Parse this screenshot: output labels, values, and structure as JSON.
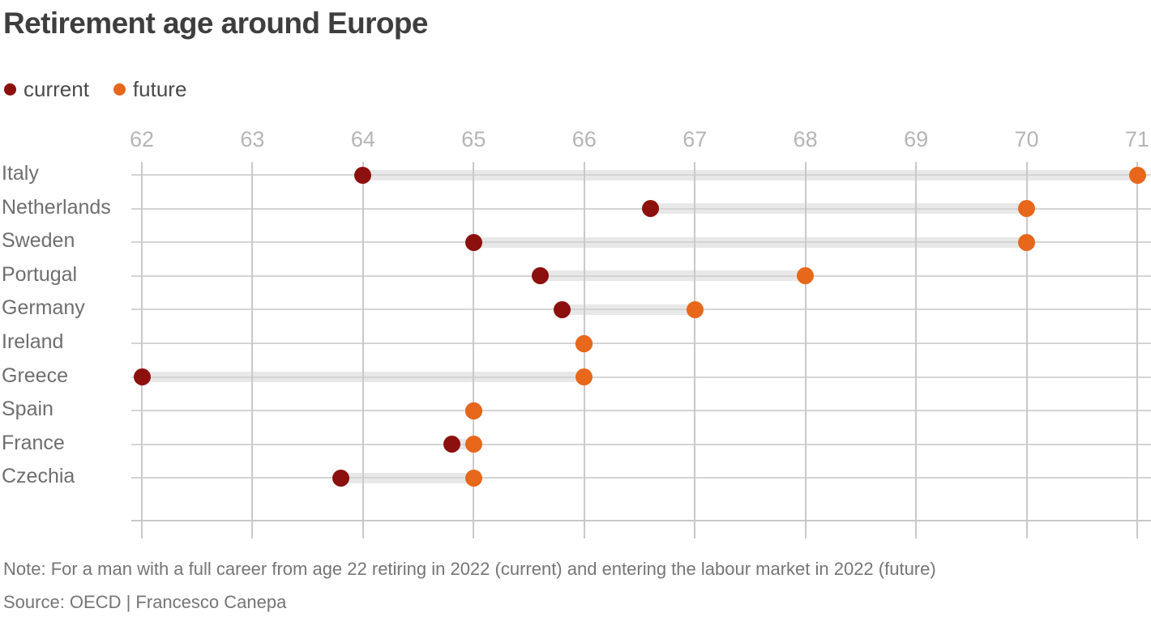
{
  "title": "Retirement age around Europe",
  "legend": {
    "current": {
      "label": "current",
      "color": "#8c100d"
    },
    "future": {
      "label": "future",
      "color": "#e7671b"
    }
  },
  "footer": {
    "note": "Note: For a man with a full career from age 22 retiring in 2022 (current) and entering the labour market in 2022 (future)",
    "source": "Source: OECD | Francesco Canepa"
  },
  "chart_data": {
    "type": "dumbbell",
    "title": "Retirement age around Europe",
    "categories": [
      "Italy",
      "Netherlands",
      "Sweden",
      "Portugal",
      "Germany",
      "Ireland",
      "Greece",
      "Spain",
      "France",
      "Czechia"
    ],
    "series": [
      {
        "name": "current",
        "color": "#8c100d",
        "values": [
          64.0,
          66.6,
          65.0,
          65.6,
          65.8,
          66.0,
          62.0,
          65.0,
          64.8,
          63.8
        ]
      },
      {
        "name": "future",
        "color": "#e7671b",
        "values": [
          71.0,
          70.0,
          70.0,
          68.0,
          67.0,
          66.0,
          66.0,
          65.0,
          65.0,
          65.0
        ]
      }
    ],
    "x_axis": {
      "min": 62,
      "max": 71,
      "ticks": [
        62,
        63,
        64,
        65,
        66,
        67,
        68,
        69,
        70,
        71
      ]
    },
    "legend_position": "top-left",
    "grid": true,
    "colors": {
      "connector_band": "#e8e8e8",
      "gridline": "#c9c9c9",
      "row_line": "#d4d4d4",
      "tick_label": "#b5b5b5",
      "category_label": "#6e6e6e"
    }
  }
}
